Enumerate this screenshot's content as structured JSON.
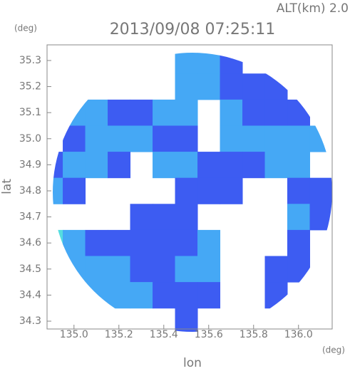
{
  "chart_data": {
    "type": "radar-map",
    "title": "2013/09/08 07:25:11",
    "annotation": "ALT(km) 2.0",
    "x_label": "lon",
    "y_label": "lat",
    "x_unit": "(deg)",
    "y_unit": "(deg)",
    "xlim": [
      134.88,
      136.15
    ],
    "ylim": [
      34.27,
      35.36
    ],
    "xticks": [
      {
        "value": 135,
        "label": "135.0"
      },
      135.2,
      135.4,
      135.6,
      135.8,
      {
        "value": 136,
        "label": "136.0"
      }
    ],
    "yticks": [
      34.3,
      34.4,
      34.5,
      34.6,
      34.7,
      34.8,
      34.9,
      {
        "value": 35,
        "label": "35.0"
      },
      35.1,
      35.2,
      35.3
    ],
    "lons": [
      134.9,
      135.0,
      135.1,
      135.2,
      135.3,
      135.4,
      135.5,
      135.6,
      135.7,
      135.8,
      135.9,
      136.0,
      136.1
    ],
    "lats": [
      35.3,
      35.2,
      35.1,
      35.0,
      34.9,
      34.8,
      34.7,
      34.6,
      34.5,
      34.4,
      34.3
    ],
    "level_colors": [
      "#ffffff",
      "#3d5cf2",
      "#45a8f5",
      "#55dde0",
      "#66f0a8"
    ],
    "z": [
      [
        0,
        0,
        0,
        0,
        0,
        0,
        2,
        2,
        1,
        0,
        0,
        0,
        0
      ],
      [
        0,
        0,
        0,
        0,
        0,
        0,
        2,
        2,
        1,
        1,
        1,
        0,
        0
      ],
      [
        0,
        2,
        2,
        1,
        1,
        2,
        2,
        0,
        2,
        1,
        1,
        1,
        0
      ],
      [
        0,
        1,
        2,
        2,
        2,
        1,
        1,
        0,
        2,
        2,
        2,
        2,
        2
      ],
      [
        1,
        2,
        2,
        1,
        0,
        2,
        2,
        1,
        1,
        1,
        2,
        2,
        0
      ],
      [
        2,
        1,
        0,
        0,
        0,
        0,
        1,
        1,
        1,
        0,
        0,
        1,
        1
      ],
      [
        0,
        0,
        0,
        0,
        1,
        1,
        1,
        0,
        0,
        0,
        0,
        2,
        1
      ],
      [
        3,
        2,
        1,
        1,
        1,
        1,
        1,
        2,
        0,
        0,
        0,
        1,
        0
      ],
      [
        0,
        2,
        2,
        2,
        1,
        1,
        2,
        2,
        0,
        0,
        1,
        1,
        0
      ],
      [
        0,
        0,
        2,
        2,
        2,
        1,
        1,
        1,
        0,
        0,
        1,
        0,
        0
      ],
      [
        0,
        0,
        0,
        0,
        0,
        0,
        1,
        0,
        0,
        0,
        0,
        0,
        0
      ]
    ]
  }
}
